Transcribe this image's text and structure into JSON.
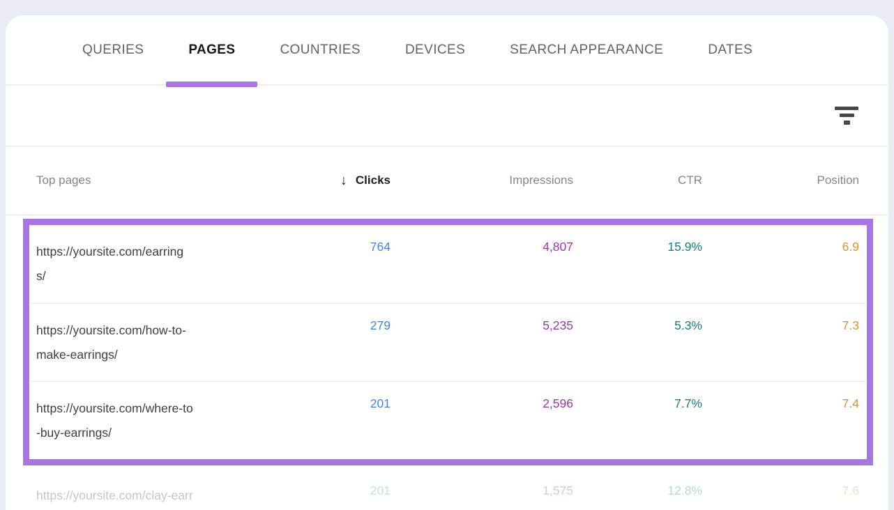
{
  "tabs": [
    {
      "label": "QUERIES",
      "active": false
    },
    {
      "label": "PAGES",
      "active": true
    },
    {
      "label": "COUNTRIES",
      "active": false
    },
    {
      "label": "DEVICES",
      "active": false
    },
    {
      "label": "SEARCH APPEARANCE",
      "active": false
    },
    {
      "label": "DATES",
      "active": false
    }
  ],
  "toolbar": {
    "filter_icon": "filter-icon"
  },
  "table": {
    "headers": {
      "top_pages": "Top pages",
      "clicks": "Clicks",
      "impressions": "Impressions",
      "ctr": "CTR",
      "position": "Position"
    },
    "sort": {
      "column": "Clicks",
      "direction": "descending",
      "arrow": "↓"
    },
    "rows": [
      {
        "url": "https://yoursite.com/earrings/",
        "url_line1": "https://yoursite.com/earring",
        "url_line2": "s/",
        "clicks": "764",
        "impressions": "4,807",
        "ctr": "15.9%",
        "position": "6.9",
        "highlighted": true
      },
      {
        "url": "https://yoursite.com/how-to-make-earrings/",
        "url_line1": "https://yoursite.com/how-to-",
        "url_line2": "make-earrings/",
        "clicks": "279",
        "impressions": "5,235",
        "ctr": "5.3%",
        "position": "7.3",
        "highlighted": true
      },
      {
        "url": "https://yoursite.com/where-to-buy-earrings/",
        "url_line1": "https://yoursite.com/where-to",
        "url_line2": "-buy-earrings/",
        "clicks": "201",
        "impressions": "2,596",
        "ctr": "7.7%",
        "position": "7.4",
        "highlighted": true
      },
      {
        "url": "https://yoursite.com/clay-earr",
        "url_line1": "https://yoursite.com/clay-earr",
        "url_line2": "",
        "clicks": "201",
        "impressions": "1,575",
        "ctr": "12.8%",
        "position": "7.6",
        "highlighted": false
      }
    ]
  },
  "colors": {
    "accent_purple": "#a876e4",
    "clicks": "#4486d8",
    "impressions": "#963a9e",
    "ctr": "#12807a",
    "position": "#d9942c",
    "page_background": "#e9ecf5"
  }
}
